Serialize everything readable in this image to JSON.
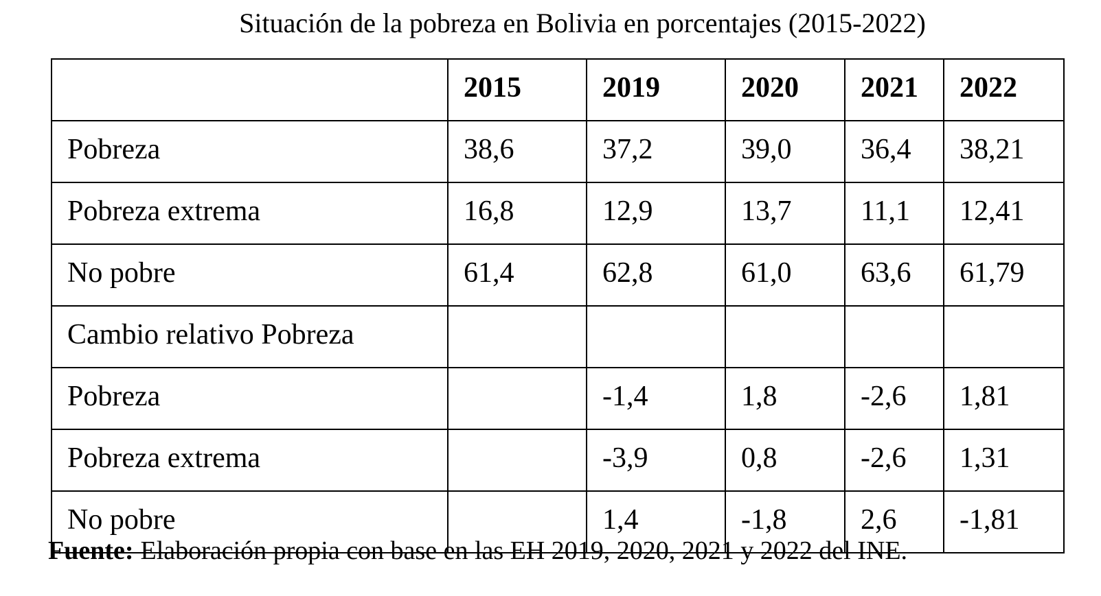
{
  "title": "Situación de la pobreza en Bolivia en porcentajes (2015-2022)",
  "table": {
    "header": [
      null,
      "2015",
      "2019",
      "2020",
      "2021",
      "2022"
    ],
    "rows": [
      [
        "Pobreza",
        "38,6",
        "37,2",
        "39,0",
        "36,4",
        "38,21"
      ],
      [
        "Pobreza extrema",
        "16,8",
        "12,9",
        "13,7",
        "11,1",
        "12,41"
      ],
      [
        "No pobre",
        "61,4",
        "62,8",
        "61,0",
        "63,6",
        "61,79"
      ],
      [
        "Cambio relativo Pobreza",
        null,
        null,
        null,
        null,
        null
      ],
      [
        "Pobreza",
        null,
        "-1,4",
        "1,8",
        "-2,6",
        "1,81"
      ],
      [
        "Pobreza extrema",
        null,
        "-3,9",
        "0,8",
        "-2,6",
        "1,31"
      ],
      [
        "No pobre",
        null,
        "1,4",
        "-1,8",
        "2,6",
        "-1,81"
      ]
    ]
  },
  "source": {
    "label": "Fuente:",
    "text": "Elaboración propia con base en las EH 2019, 2020, 2021 y 2022 del INE."
  }
}
